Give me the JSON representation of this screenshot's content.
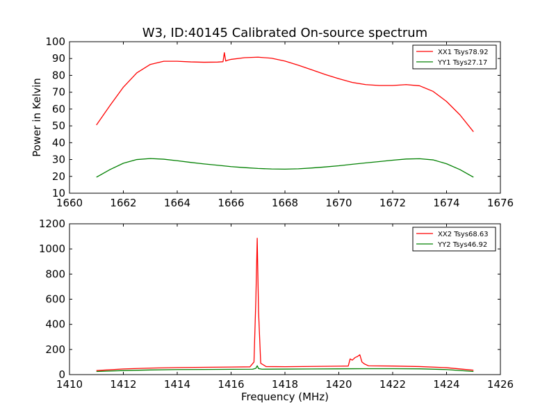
{
  "title": "W3, ID:40145 Calibrated On-source spectrum",
  "chart_data": [
    {
      "type": "line",
      "title": "W3, ID:40145 Calibrated On-source spectrum",
      "xlabel": "",
      "ylabel": "Power in Kelvin",
      "xlim": [
        1660,
        1676
      ],
      "ylim": [
        10,
        100
      ],
      "x_ticks": [
        "1660",
        "1662",
        "1664",
        "1666",
        "1668",
        "1670",
        "1672",
        "1674",
        "1676"
      ],
      "y_ticks": [
        "10",
        "20",
        "30",
        "40",
        "50",
        "60",
        "70",
        "80",
        "90",
        "100"
      ],
      "legend_position": "top-right",
      "series": [
        {
          "name": "XX1 Tsys78.92",
          "color": "#ff0000",
          "x": [
            1661.0,
            1661.5,
            1662.0,
            1662.5,
            1663.0,
            1663.5,
            1664.0,
            1664.5,
            1665.0,
            1665.5,
            1665.7,
            1665.75,
            1665.8,
            1665.85,
            1666.0,
            1666.5,
            1667.0,
            1667.5,
            1668.0,
            1668.5,
            1669.0,
            1669.5,
            1670.0,
            1670.5,
            1671.0,
            1671.5,
            1672.0,
            1672.5,
            1673.0,
            1673.5,
            1674.0,
            1674.5,
            1675.0
          ],
          "y": [
            50.5,
            62,
            73,
            81.5,
            86.5,
            88.4,
            88.4,
            88.0,
            87.8,
            87.9,
            88.1,
            93.5,
            88.5,
            88.9,
            89.5,
            90.5,
            90.8,
            90.2,
            88.5,
            86.0,
            83.3,
            80.5,
            78.0,
            75.8,
            74.5,
            74.0,
            74.0,
            74.5,
            73.8,
            70.5,
            64.5,
            56.5,
            46.5
          ]
        },
        {
          "name": "YY1 Tsys27.17",
          "color": "#008000",
          "x": [
            1661.0,
            1661.5,
            1662.0,
            1662.5,
            1663.0,
            1663.5,
            1664.0,
            1664.5,
            1665.0,
            1665.5,
            1666.0,
            1666.5,
            1667.0,
            1667.5,
            1668.0,
            1668.5,
            1669.0,
            1669.5,
            1670.0,
            1670.5,
            1671.0,
            1671.5,
            1672.0,
            1672.5,
            1673.0,
            1673.5,
            1674.0,
            1674.5,
            1675.0
          ],
          "y": [
            19.5,
            24.0,
            27.8,
            30.0,
            30.6,
            30.2,
            29.3,
            28.3,
            27.4,
            26.6,
            25.8,
            25.2,
            24.7,
            24.4,
            24.3,
            24.5,
            25.0,
            25.6,
            26.3,
            27.2,
            28.0,
            28.8,
            29.6,
            30.3,
            30.5,
            29.8,
            27.5,
            24.0,
            19.5
          ]
        }
      ]
    },
    {
      "type": "line",
      "title": "",
      "xlabel": "Frequency (MHz)",
      "ylabel": "",
      "xlim": [
        1410,
        1426
      ],
      "ylim": [
        0,
        1200
      ],
      "x_ticks": [
        "1410",
        "1412",
        "1414",
        "1416",
        "1418",
        "1420",
        "1422",
        "1424",
        "1426"
      ],
      "y_ticks": [
        "0",
        "200",
        "400",
        "600",
        "800",
        "1000",
        "1200"
      ],
      "legend_position": "top-right",
      "series": [
        {
          "name": "XX2 Tsys68.63",
          "color": "#ff0000",
          "x": [
            1411.0,
            1412.0,
            1413.0,
            1414.0,
            1415.0,
            1416.0,
            1416.7,
            1416.85,
            1416.92,
            1416.97,
            1417.02,
            1417.1,
            1417.3,
            1418.0,
            1419.0,
            1420.0,
            1420.35,
            1420.42,
            1420.5,
            1420.6,
            1420.7,
            1420.78,
            1420.86,
            1420.95,
            1421.1,
            1422.0,
            1423.0,
            1424.0,
            1425.0
          ],
          "y": [
            32,
            45,
            52,
            56,
            58,
            60,
            62,
            100,
            600,
            1085,
            500,
            90,
            64,
            63,
            65,
            67,
            68,
            125,
            115,
            135,
            145,
            158,
            100,
            85,
            70,
            68,
            64,
            55,
            35
          ]
        },
        {
          "name": "YY2 Tsys46.92",
          "color": "#008000",
          "x": [
            1411.0,
            1412.0,
            1413.0,
            1414.0,
            1415.0,
            1416.0,
            1416.8,
            1416.92,
            1416.97,
            1417.02,
            1417.15,
            1418.0,
            1419.0,
            1420.0,
            1421.0,
            1422.0,
            1423.0,
            1424.0,
            1425.0
          ],
          "y": [
            25,
            32,
            37,
            40,
            41,
            42,
            43,
            50,
            70,
            48,
            43,
            44,
            45,
            46,
            47,
            47,
            46,
            40,
            25
          ]
        }
      ]
    }
  ]
}
